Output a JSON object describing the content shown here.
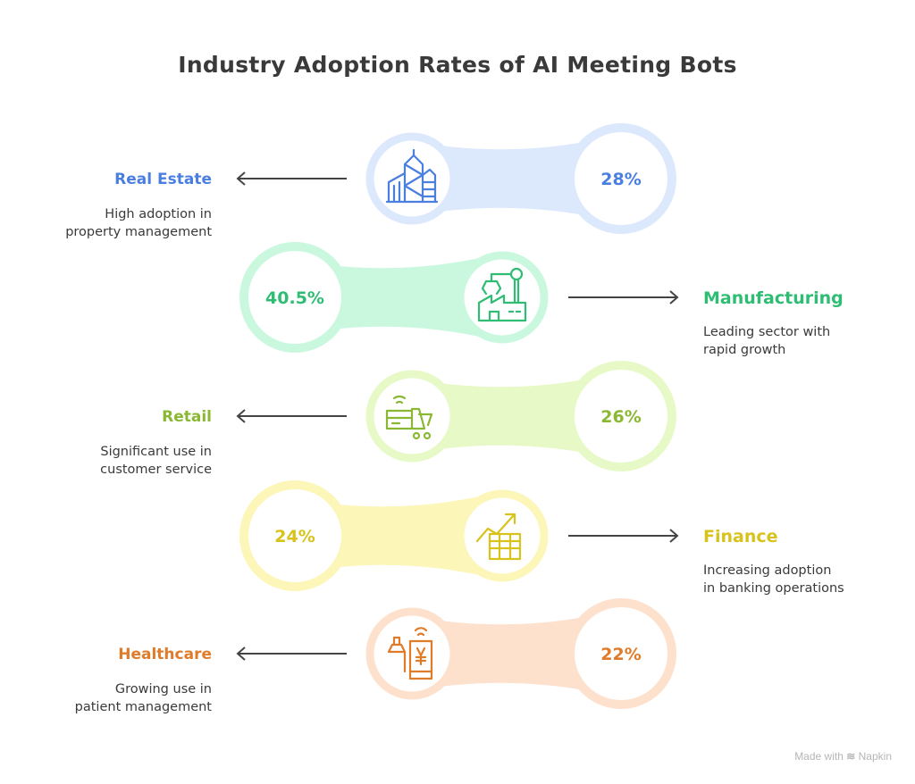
{
  "title": "Industry Adoption Rates of AI Meeting Bots",
  "rows": [
    {
      "label": "Real Estate",
      "value": "28%",
      "description": [
        "High adoption in",
        "property management"
      ],
      "icon": "city-buildings-icon",
      "side": "left",
      "color": "#4a7fe0",
      "ring": "#dce8fc"
    },
    {
      "label": "Manufacturing",
      "value": "40.5%",
      "description": [
        "Leading sector with",
        "rapid growth"
      ],
      "icon": "factory-robot-arm-icon",
      "side": "right",
      "color": "#2ebd72",
      "ring": "#c9f8df"
    },
    {
      "label": "Retail",
      "value": "26%",
      "description": [
        "Significant use in",
        "customer service"
      ],
      "icon": "shopping-cart-card-icon",
      "side": "left",
      "color": "#8ab832",
      "ring": "#e8f9c8"
    },
    {
      "label": "Finance",
      "value": "24%",
      "description": [
        "Increasing adoption",
        "in banking operations"
      ],
      "icon": "finance-growth-chart-icon",
      "side": "right",
      "color": "#d8c21c",
      "ring": "#fcf6b8"
    },
    {
      "label": "Healthcare",
      "value": "22%",
      "description": [
        "Growing use in",
        "patient management"
      ],
      "icon": "medical-payment-icon",
      "side": "left",
      "color": "#e07b2a",
      "ring": "#fde1cd"
    }
  ],
  "footer": {
    "made_with": "Made with",
    "brand": "Napkin"
  }
}
